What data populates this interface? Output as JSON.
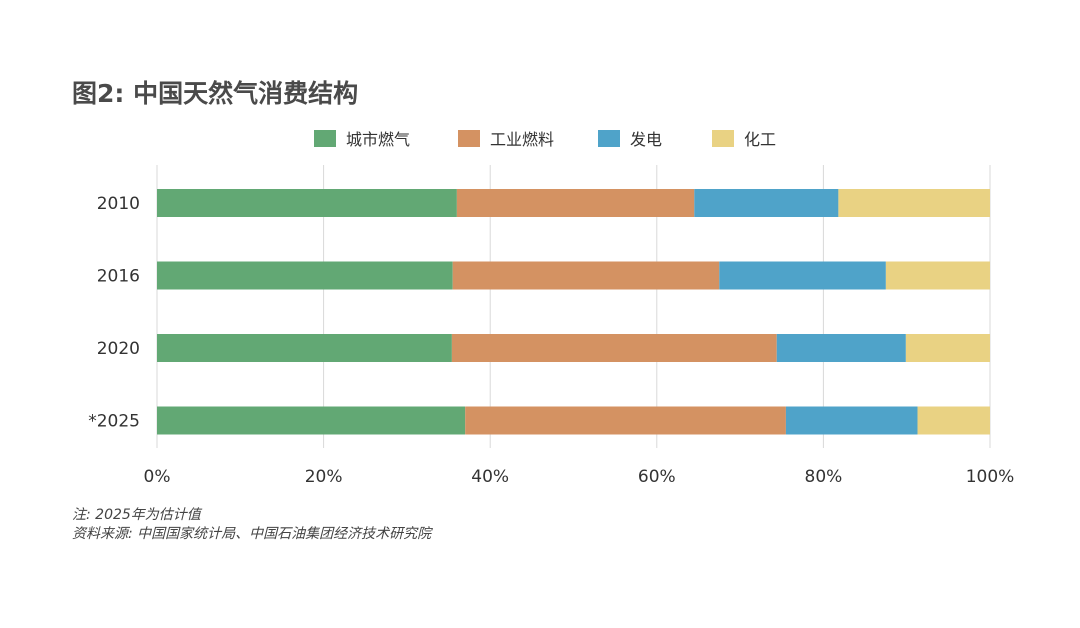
{
  "title": "图2: 中国天然气消费结构",
  "notes": {
    "estimate_note": "注: 2025年为估计值",
    "source": "资料来源: 中国国家统计局、中国石油集团经济技术研究院"
  },
  "chart_data": {
    "type": "bar",
    "orientation": "horizontal",
    "stacked": true,
    "categories": [
      "2010",
      "2016",
      "2020",
      "*2025"
    ],
    "series": [
      {
        "name": "城市燃气",
        "color": "#62a874",
        "values": [
          36,
          35.5,
          35.4,
          37
        ]
      },
      {
        "name": "工业燃料",
        "color": "#d49262",
        "values": [
          28.5,
          32,
          39,
          38.5
        ]
      },
      {
        "name": "发电",
        "color": "#4fa3c9",
        "values": [
          17.3,
          20,
          15.5,
          15.8
        ]
      },
      {
        "name": "化工",
        "color": "#e9d283",
        "values": [
          18.2,
          12.5,
          10.1,
          8.7
        ]
      }
    ],
    "xlim": [
      0,
      100
    ],
    "xticks": [
      "0%",
      "20%",
      "40%",
      "60%",
      "80%",
      "100%"
    ],
    "xtick_values": [
      0,
      20,
      40,
      60,
      80,
      100
    ],
    "grid": true,
    "legend": "top-center"
  }
}
